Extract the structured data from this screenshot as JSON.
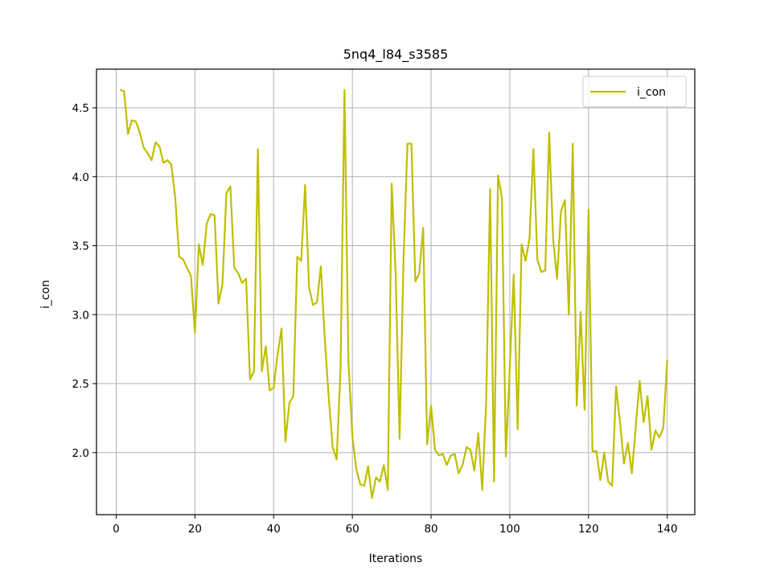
{
  "chart_data": {
    "type": "line",
    "title": "5nq4_l84_s3585",
    "xlabel": "Iterations",
    "ylabel": "i_con",
    "xlim": [
      -5,
      147
    ],
    "ylim": [
      1.55,
      4.78
    ],
    "xticks": [
      0,
      20,
      40,
      60,
      80,
      100,
      120,
      140
    ],
    "xtick_labels": [
      "0",
      "20",
      "40",
      "60",
      "80",
      "100",
      "120",
      "140"
    ],
    "yticks": [
      2.0,
      2.5,
      3.0,
      3.5,
      4.0,
      4.5
    ],
    "ytick_labels": [
      "2.0",
      "2.5",
      "3.0",
      "3.5",
      "4.0",
      "4.5"
    ],
    "grid": true,
    "legend_position": "top-right",
    "series": [
      {
        "name": "i_con",
        "color": "#bfbf00",
        "x": [
          1,
          2,
          3,
          4,
          5,
          6,
          7,
          8,
          9,
          10,
          11,
          12,
          13,
          14,
          15,
          16,
          17,
          18,
          19,
          20,
          21,
          22,
          23,
          24,
          25,
          26,
          27,
          28,
          29,
          30,
          31,
          32,
          33,
          34,
          35,
          36,
          37,
          38,
          39,
          40,
          41,
          42,
          43,
          44,
          45,
          46,
          47,
          48,
          49,
          50,
          51,
          52,
          53,
          54,
          55,
          56,
          57,
          58,
          59,
          60,
          61,
          62,
          63,
          64,
          65,
          66,
          67,
          68,
          69,
          70,
          71,
          72,
          73,
          74,
          75,
          76,
          77,
          78,
          79,
          80,
          81,
          82,
          83,
          84,
          85,
          86,
          87,
          88,
          89,
          90,
          91,
          92,
          93,
          94,
          95,
          96,
          97,
          98,
          99,
          100,
          101,
          102,
          103,
          104,
          105,
          106,
          107,
          108,
          109,
          110,
          111,
          112,
          113,
          114,
          115,
          116,
          117,
          118,
          119,
          120,
          121,
          122,
          123,
          124,
          125,
          126,
          127,
          128,
          129,
          130,
          131,
          132,
          133,
          134,
          135,
          136,
          137,
          138,
          139,
          140
        ],
        "values": [
          4.63,
          4.62,
          4.31,
          4.41,
          4.4,
          4.32,
          4.21,
          4.17,
          4.12,
          4.25,
          4.22,
          4.1,
          4.12,
          4.09,
          3.85,
          3.42,
          3.4,
          3.34,
          3.28,
          2.87,
          3.51,
          3.36,
          3.66,
          3.73,
          3.72,
          3.08,
          3.22,
          3.88,
          3.93,
          3.34,
          3.3,
          3.23,
          3.26,
          2.53,
          2.59,
          4.2,
          2.59,
          2.77,
          2.45,
          2.47,
          2.71,
          2.9,
          2.08,
          2.36,
          2.41,
          3.42,
          3.39,
          3.94,
          3.2,
          3.07,
          3.09,
          3.35,
          2.82,
          2.4,
          2.04,
          1.95,
          2.6,
          4.63,
          2.66,
          2.12,
          1.88,
          1.77,
          1.76,
          1.9,
          1.67,
          1.82,
          1.79,
          1.91,
          1.73,
          3.95,
          3.3,
          2.1,
          3.4,
          4.24,
          4.24,
          3.24,
          3.3,
          3.63,
          2.06,
          2.34,
          2.02,
          1.98,
          1.99,
          1.91,
          1.98,
          1.99,
          1.85,
          1.91,
          2.04,
          2.02,
          1.87,
          2.14,
          1.73,
          2.37,
          3.91,
          1.79,
          4.01,
          3.85,
          1.97,
          2.62,
          3.29,
          2.17,
          3.51,
          3.39,
          3.55,
          4.2,
          3.4,
          3.31,
          3.32,
          4.32,
          3.55,
          3.26,
          3.75,
          3.83,
          3.0,
          4.24,
          2.34,
          3.02,
          2.31,
          3.76,
          2.01,
          2.01,
          1.8,
          2.0,
          1.79,
          1.76,
          2.48,
          2.22,
          1.92,
          2.07,
          1.85,
          2.19,
          2.52,
          2.22,
          2.41,
          2.02,
          2.16,
          2.11,
          2.18,
          2.67
        ]
      }
    ]
  }
}
